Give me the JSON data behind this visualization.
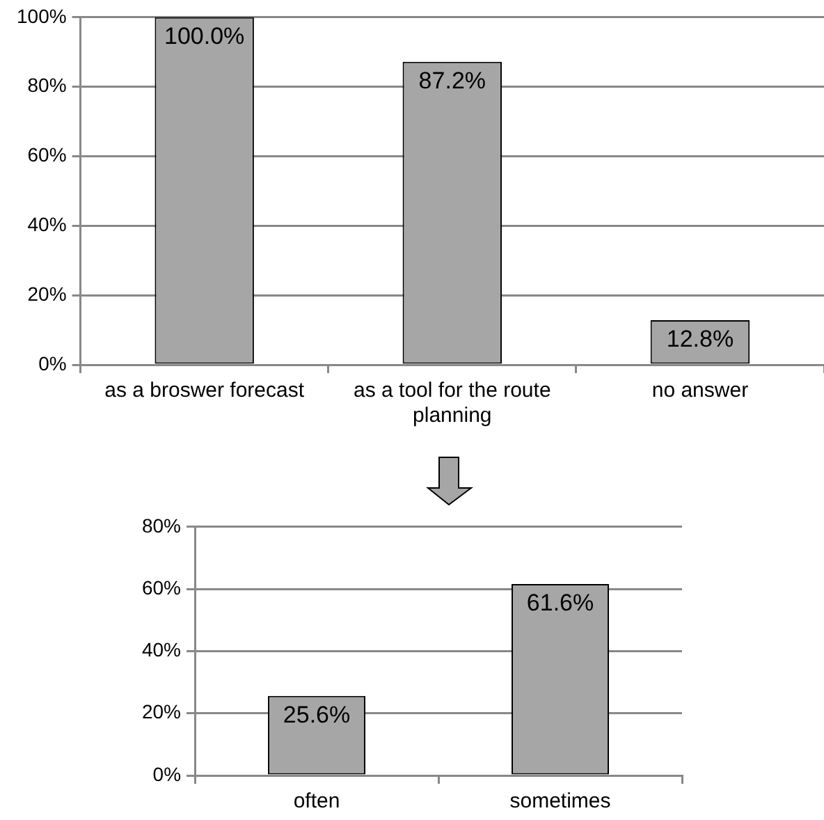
{
  "chart_data": [
    {
      "type": "bar",
      "categories": [
        "as a broswer forecast",
        "as a tool for the route planning",
        "no answer"
      ],
      "values": [
        100.0,
        87.2,
        12.8
      ],
      "value_labels": [
        "100.0%",
        "87.2%",
        "12.8%"
      ],
      "color": "#a6a6a6",
      "ylim": [
        0,
        100
      ],
      "yticks": [
        {
          "value": 0,
          "label": "0%"
        },
        {
          "value": 20,
          "label": "20%"
        },
        {
          "value": 40,
          "label": "40%"
        },
        {
          "value": 60,
          "label": "60%"
        },
        {
          "value": 80,
          "label": "80%"
        },
        {
          "value": 100,
          "label": "100%"
        }
      ],
      "grid": "y",
      "legend": false
    },
    {
      "type": "bar",
      "categories": [
        "often",
        "sometimes"
      ],
      "values": [
        25.6,
        61.6
      ],
      "value_labels": [
        "25.6%",
        "61.6%"
      ],
      "color": "#a6a6a6",
      "ylim": [
        0,
        80
      ],
      "yticks": [
        {
          "value": 0,
          "label": "0%"
        },
        {
          "value": 20,
          "label": "20%"
        },
        {
          "value": 40,
          "label": "40%"
        },
        {
          "value": 60,
          "label": "60%"
        },
        {
          "value": 80,
          "label": "80%"
        }
      ],
      "grid": "y",
      "legend": false
    }
  ]
}
